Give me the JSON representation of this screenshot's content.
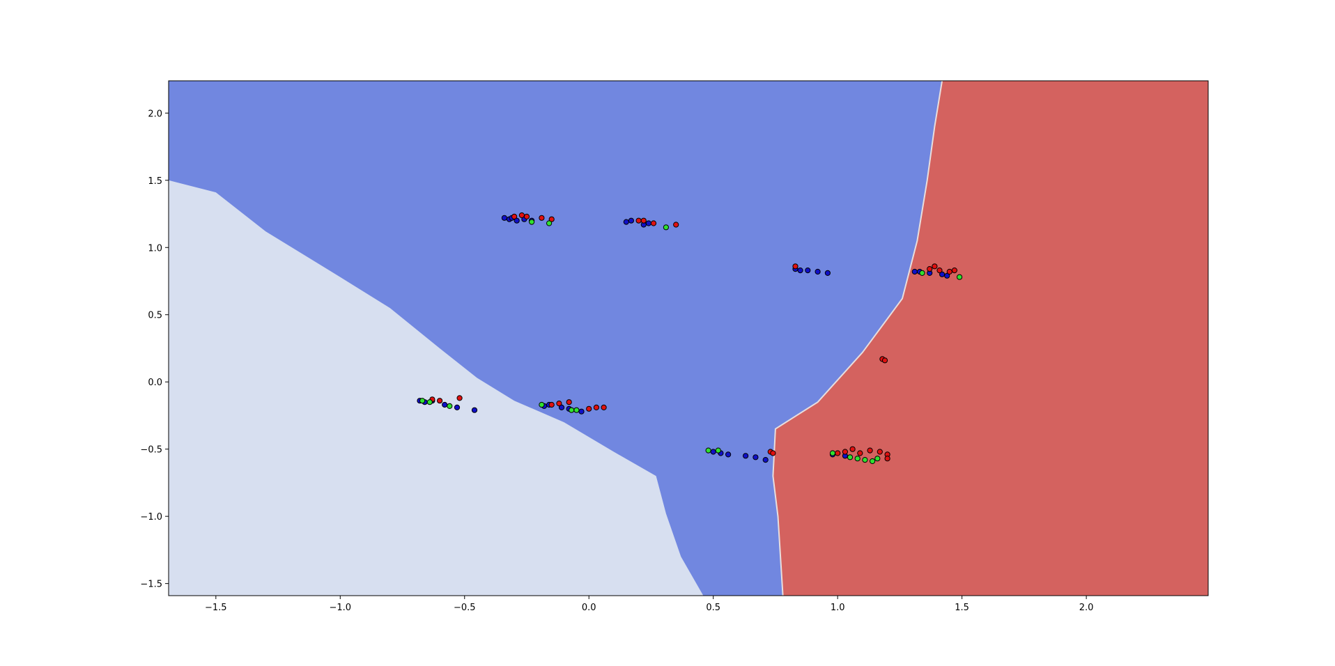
{
  "chart_data": {
    "type": "scatter",
    "title": "",
    "xlabel": "",
    "ylabel": "",
    "xlim": [
      -1.69,
      2.49
    ],
    "ylim": [
      -1.59,
      2.24
    ],
    "grid": false,
    "legend": "none",
    "x_ticks": [
      -1.5,
      -1.0,
      -0.5,
      0.0,
      0.5,
      1.0,
      1.5,
      2.0
    ],
    "x_tick_labels": [
      "−1.5",
      "−1.0",
      "−0.5",
      "0.0",
      "0.5",
      "1.0",
      "1.5",
      "2.0"
    ],
    "y_ticks": [
      -1.5,
      -1.0,
      -0.5,
      0.0,
      0.5,
      1.0,
      1.5,
      2.0
    ],
    "y_tick_labels": [
      "−1.5",
      "−1.0",
      "−0.5",
      "0.0",
      "0.5",
      "1.0",
      "1.5",
      "2.0"
    ],
    "regions": [
      {
        "class": "light",
        "color": "#d7dff0"
      },
      {
        "class": "blue",
        "color": "#7187e0"
      },
      {
        "class": "red",
        "color": "#d4625f"
      }
    ],
    "boundaries": {
      "light_blue": [
        [
          -1.69,
          1.5
        ],
        [
          -1.5,
          1.41
        ],
        [
          -1.3,
          1.12
        ],
        [
          -1.0,
          0.78
        ],
        [
          -0.8,
          0.55
        ],
        [
          -0.6,
          0.25
        ],
        [
          -0.45,
          0.03
        ],
        [
          -0.3,
          -0.14
        ],
        [
          -0.1,
          -0.3
        ],
        [
          0.1,
          -0.52
        ],
        [
          0.27,
          -0.7
        ],
        [
          0.31,
          -0.98
        ],
        [
          0.37,
          -1.3
        ],
        [
          0.46,
          -1.59
        ]
      ],
      "blue_red": [
        [
          1.42,
          2.24
        ],
        [
          1.39,
          1.9
        ],
        [
          1.36,
          1.5
        ],
        [
          1.32,
          1.05
        ],
        [
          1.26,
          0.62
        ],
        [
          1.1,
          0.22
        ],
        [
          0.92,
          -0.15
        ],
        [
          0.75,
          -0.35
        ],
        [
          0.74,
          -0.7
        ],
        [
          0.76,
          -1.0
        ],
        [
          0.78,
          -1.59
        ]
      ]
    },
    "series": [
      {
        "class": "blue",
        "color": "#1010c8",
        "points": [
          [
            -0.34,
            1.22
          ],
          [
            -0.32,
            1.21
          ],
          [
            -0.31,
            1.22
          ],
          [
            -0.29,
            1.2
          ],
          [
            -0.26,
            1.21
          ],
          [
            -0.23,
            1.2
          ],
          [
            0.15,
            1.19
          ],
          [
            0.17,
            1.2
          ],
          [
            0.22,
            1.17
          ],
          [
            0.24,
            1.18
          ],
          [
            0.83,
            0.84
          ],
          [
            0.85,
            0.83
          ],
          [
            0.88,
            0.83
          ],
          [
            0.92,
            0.82
          ],
          [
            0.96,
            0.81
          ],
          [
            1.31,
            0.82
          ],
          [
            1.33,
            0.82
          ],
          [
            1.37,
            0.81
          ],
          [
            1.42,
            0.8
          ],
          [
            1.44,
            0.79
          ],
          [
            -0.68,
            -0.14
          ],
          [
            -0.66,
            -0.15
          ],
          [
            -0.63,
            -0.14
          ],
          [
            -0.58,
            -0.17
          ],
          [
            -0.53,
            -0.19
          ],
          [
            -0.46,
            -0.21
          ],
          [
            -0.18,
            -0.18
          ],
          [
            -0.16,
            -0.17
          ],
          [
            -0.11,
            -0.19
          ],
          [
            -0.08,
            -0.2
          ],
          [
            -0.03,
            -0.22
          ],
          [
            0.5,
            -0.52
          ],
          [
            0.53,
            -0.53
          ],
          [
            0.56,
            -0.54
          ],
          [
            0.63,
            -0.55
          ],
          [
            0.67,
            -0.56
          ],
          [
            0.71,
            -0.58
          ],
          [
            0.98,
            -0.54
          ],
          [
            1.03,
            -0.55
          ]
        ]
      },
      {
        "class": "red",
        "color": "#e01010",
        "points": [
          [
            -0.3,
            1.23
          ],
          [
            -0.27,
            1.24
          ],
          [
            -0.25,
            1.23
          ],
          [
            -0.19,
            1.22
          ],
          [
            -0.15,
            1.21
          ],
          [
            0.2,
            1.2
          ],
          [
            0.22,
            1.2
          ],
          [
            0.26,
            1.18
          ],
          [
            0.35,
            1.17
          ],
          [
            1.37,
            0.84
          ],
          [
            1.39,
            0.86
          ],
          [
            1.41,
            0.83
          ],
          [
            1.45,
            0.82
          ],
          [
            1.47,
            0.83
          ],
          [
            0.83,
            0.86
          ],
          [
            1.18,
            0.17
          ],
          [
            1.19,
            0.16
          ],
          [
            -0.63,
            -0.13
          ],
          [
            -0.6,
            -0.14
          ],
          [
            -0.52,
            -0.12
          ],
          [
            -0.15,
            -0.17
          ],
          [
            -0.12,
            -0.16
          ],
          [
            -0.08,
            -0.15
          ],
          [
            0.0,
            -0.2
          ],
          [
            0.03,
            -0.19
          ],
          [
            0.06,
            -0.19
          ],
          [
            0.73,
            -0.52
          ],
          [
            0.74,
            -0.53
          ],
          [
            1.0,
            -0.53
          ],
          [
            1.03,
            -0.52
          ],
          [
            1.06,
            -0.5
          ],
          [
            1.09,
            -0.53
          ],
          [
            1.13,
            -0.51
          ],
          [
            1.17,
            -0.52
          ],
          [
            1.2,
            -0.54
          ],
          [
            1.2,
            -0.57
          ]
        ]
      },
      {
        "class": "green",
        "color": "#30e030",
        "points": [
          [
            -0.23,
            1.19
          ],
          [
            -0.16,
            1.18
          ],
          [
            0.31,
            1.15
          ],
          [
            1.34,
            0.81
          ],
          [
            1.49,
            0.78
          ],
          [
            -0.67,
            -0.14
          ],
          [
            -0.64,
            -0.15
          ],
          [
            -0.56,
            -0.18
          ],
          [
            -0.19,
            -0.17
          ],
          [
            -0.07,
            -0.21
          ],
          [
            -0.05,
            -0.21
          ],
          [
            0.48,
            -0.51
          ],
          [
            0.52,
            -0.51
          ],
          [
            0.98,
            -0.53
          ],
          [
            1.05,
            -0.56
          ],
          [
            1.08,
            -0.57
          ],
          [
            1.11,
            -0.58
          ],
          [
            1.14,
            -0.59
          ],
          [
            1.16,
            -0.57
          ]
        ]
      }
    ]
  }
}
